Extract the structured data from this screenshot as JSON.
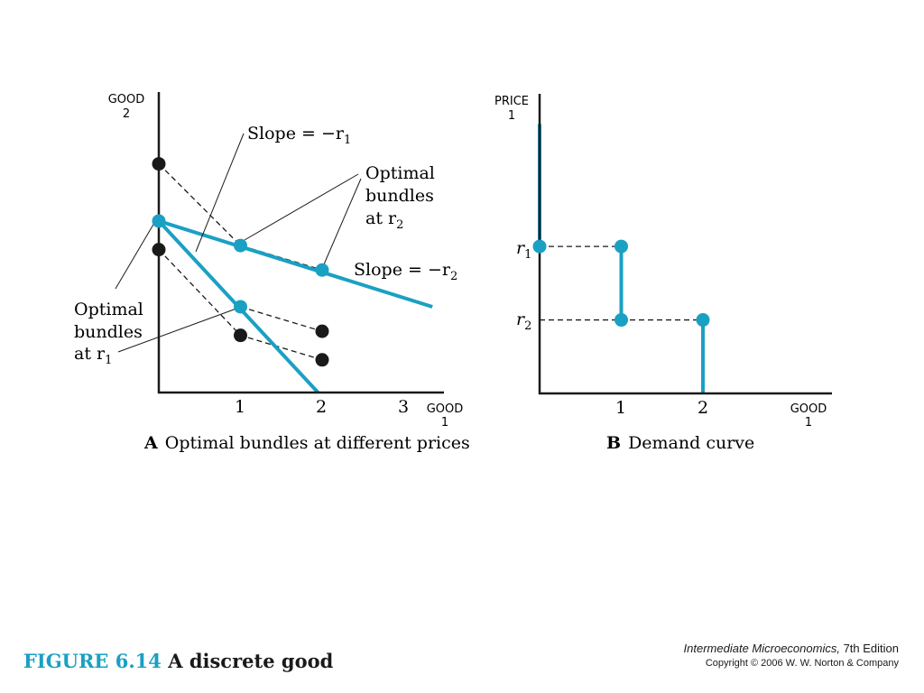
{
  "figure": {
    "number": "FIGURE 6.14",
    "name": "A discrete good"
  },
  "credits": {
    "book_title": "Intermediate Microeconomics,",
    "edition": " 7th Edition",
    "copyright": "Copyright © 2006 W. W. Norton & Company"
  },
  "colors": {
    "accent": "#1aa0c3",
    "ink": "#1a1a1a"
  },
  "chart_data": [
    {
      "type": "line",
      "panel_letter": "A",
      "caption": "Optimal bundles at different prices",
      "xlabel": [
        "GOOD",
        "1"
      ],
      "ylabel": [
        "GOOD",
        "2"
      ],
      "x_ticks": [
        "1",
        "2",
        "3"
      ],
      "xlim": [
        0,
        3.6
      ],
      "ylim": [
        0,
        3.6
      ],
      "series": [
        {
          "style": "budget-line",
          "color": "#1aa0c3",
          "x": [
            0,
            3.35
          ],
          "y": [
            2.1,
            1.05
          ]
        },
        {
          "style": "budget-line",
          "color": "#1aa0c3",
          "x": [
            0,
            1.95
          ],
          "y": [
            2.1,
            0
          ]
        },
        {
          "style": "dashed",
          "color": "#1a1a1a",
          "x": [
            0,
            1,
            2
          ],
          "y": [
            2.8,
            1.8,
            1.5
          ]
        },
        {
          "style": "dashed",
          "color": "#1a1a1a",
          "x": [
            0,
            1,
            2
          ],
          "y": [
            1.75,
            0.7,
            0.4
          ]
        },
        {
          "style": "dashed",
          "color": "#1a1a1a",
          "x": [
            1,
            2
          ],
          "y": [
            1.05,
            0.75
          ]
        }
      ],
      "points": [
        {
          "x": 0,
          "y": 2.8,
          "color": "#1a1a1a"
        },
        {
          "x": 0,
          "y": 1.75,
          "color": "#1a1a1a"
        },
        {
          "x": 1,
          "y": 0.7,
          "color": "#1a1a1a"
        },
        {
          "x": 2,
          "y": 0.75,
          "color": "#1a1a1a"
        },
        {
          "x": 2,
          "y": 0.4,
          "color": "#1a1a1a"
        },
        {
          "x": 0,
          "y": 2.1,
          "color": "#1aa0c3"
        },
        {
          "x": 1,
          "y": 1.8,
          "color": "#1aa0c3"
        },
        {
          "x": 2,
          "y": 1.5,
          "color": "#1aa0c3"
        },
        {
          "x": 1,
          "y": 1.05,
          "color": "#1aa0c3"
        }
      ],
      "annotations": [
        {
          "text": "Slope = −r",
          "sub": "1"
        },
        {
          "lines": [
            "Optimal",
            "bundles",
            "at r"
          ],
          "sub": "2"
        },
        {
          "text": "Slope = −r",
          "sub": "2"
        },
        {
          "lines": [
            "Optimal",
            "bundles",
            "at r"
          ],
          "sub": "1"
        }
      ]
    },
    {
      "type": "line",
      "panel_letter": "B",
      "caption": "Demand curve",
      "xlabel": [
        "GOOD",
        "1"
      ],
      "ylabel": [
        "PRICE",
        "1"
      ],
      "x_ticks": [
        "1",
        "2"
      ],
      "y_ticks": [
        {
          "label": "r",
          "sub": "1"
        },
        {
          "label": "r",
          "sub": "2"
        }
      ],
      "xlim": [
        0,
        3.6
      ],
      "ylim": [
        0,
        3.6
      ],
      "series": [
        {
          "style": "demand-step",
          "color": "#1aa0c3",
          "x": [
            0,
            0
          ],
          "y": [
            3.3,
            1.8
          ]
        },
        {
          "style": "demand-step",
          "color": "#1aa0c3",
          "x": [
            1,
            1
          ],
          "y": [
            1.8,
            0.9
          ]
        },
        {
          "style": "demand-step",
          "color": "#1aa0c3",
          "x": [
            2,
            2
          ],
          "y": [
            0.9,
            0
          ]
        },
        {
          "style": "dashed",
          "color": "#1a1a1a",
          "x": [
            0,
            1
          ],
          "y": [
            1.8,
            1.8
          ]
        },
        {
          "style": "dashed",
          "color": "#1a1a1a",
          "x": [
            0,
            2
          ],
          "y": [
            0.9,
            0.9
          ]
        }
      ],
      "points": [
        {
          "x": 0,
          "y": 1.8,
          "color": "#1aa0c3"
        },
        {
          "x": 1,
          "y": 1.8,
          "color": "#1aa0c3"
        },
        {
          "x": 1,
          "y": 0.9,
          "color": "#1aa0c3"
        },
        {
          "x": 2,
          "y": 0.9,
          "color": "#1aa0c3"
        }
      ]
    }
  ]
}
